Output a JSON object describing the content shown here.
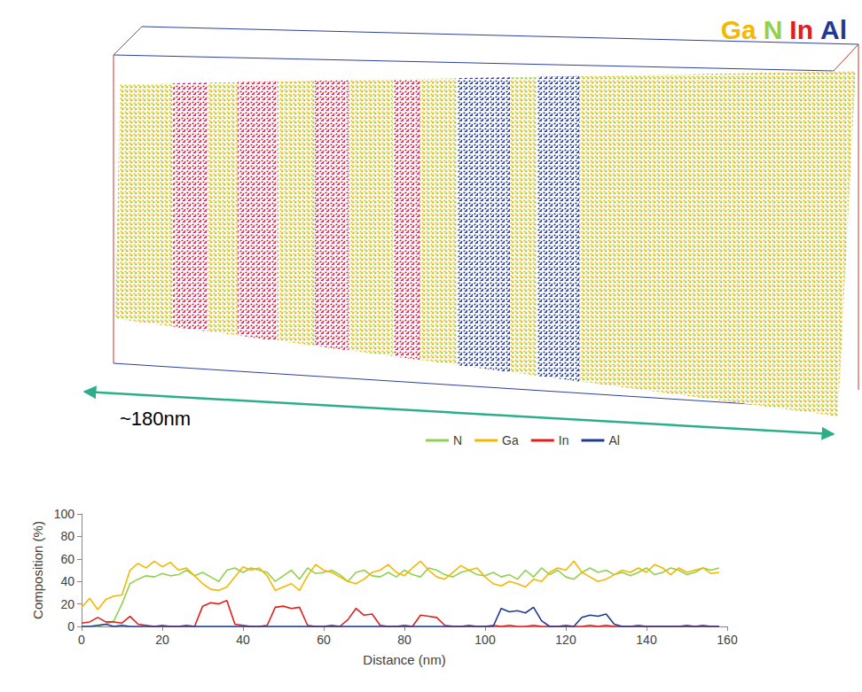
{
  "reconstruction": {
    "elements": [
      {
        "label": "Ga",
        "color": "#f5b800"
      },
      {
        "label": "N",
        "color": "#92d050"
      },
      {
        "label": "In",
        "color": "#e0201b"
      },
      {
        "label": "Al",
        "color": "#1f3a93"
      }
    ],
    "scale_label": "~180nm"
  },
  "chart_data": {
    "type": "line",
    "x_label": "Distance (nm)",
    "y_label": "Composition (%)",
    "xlim": [
      0,
      160
    ],
    "xticks": [
      0,
      20,
      40,
      60,
      80,
      100,
      120,
      140,
      160
    ],
    "ylim": [
      0,
      100
    ],
    "yticks": [
      0,
      20,
      40,
      60,
      80,
      100
    ],
    "grid": false,
    "legend": "top",
    "x": [
      0,
      2,
      4,
      6,
      8,
      10,
      12,
      14,
      16,
      18,
      20,
      22,
      24,
      26,
      28,
      30,
      32,
      34,
      36,
      38,
      40,
      42,
      44,
      46,
      48,
      50,
      52,
      54,
      56,
      58,
      60,
      62,
      64,
      66,
      68,
      70,
      72,
      74,
      76,
      78,
      80,
      82,
      84,
      86,
      88,
      90,
      92,
      94,
      96,
      98,
      100,
      102,
      104,
      106,
      108,
      110,
      112,
      114,
      116,
      118,
      120,
      122,
      124,
      126,
      128,
      130,
      132,
      134,
      136,
      138,
      140,
      142,
      144,
      146,
      148,
      150,
      152,
      154,
      156,
      158
    ],
    "series": [
      {
        "name": "N",
        "color": "#92d050",
        "values": [
          0,
          0,
          0,
          2,
          5,
          20,
          38,
          42,
          45,
          44,
          47,
          45,
          46,
          50,
          45,
          48,
          44,
          40,
          50,
          52,
          48,
          52,
          50,
          48,
          40,
          45,
          50,
          42,
          52,
          47,
          48,
          50,
          46,
          40,
          48,
          50,
          45,
          44,
          48,
          44,
          50,
          46,
          44,
          52,
          50,
          46,
          44,
          48,
          50,
          46,
          45,
          48,
          44,
          46,
          42,
          50,
          44,
          52,
          46,
          50,
          44,
          42,
          48,
          52,
          48,
          50,
          46,
          48,
          45,
          48,
          52,
          46,
          48,
          52,
          50,
          46,
          48,
          52,
          50,
          52
        ]
      },
      {
        "name": "Ga",
        "color": "#f5b800",
        "values": [
          17,
          25,
          15,
          24,
          27,
          28,
          50,
          56,
          52,
          58,
          53,
          57,
          50,
          52,
          45,
          38,
          33,
          32,
          35,
          44,
          53,
          50,
          52,
          45,
          32,
          35,
          38,
          32,
          45,
          55,
          50,
          48,
          44,
          40,
          38,
          42,
          48,
          50,
          55,
          48,
          45,
          52,
          58,
          50,
          44,
          42,
          48,
          54,
          50,
          52,
          44,
          38,
          36,
          40,
          38,
          35,
          42,
          40,
          48,
          52,
          50,
          58,
          48,
          44,
          40,
          42,
          46,
          50,
          48,
          52,
          48,
          55,
          52,
          46,
          52,
          48,
          50,
          52,
          47,
          48
        ]
      },
      {
        "name": "In",
        "color": "#e0201b",
        "values": [
          3,
          4,
          8,
          4,
          4,
          3,
          9,
          2,
          1,
          0,
          1,
          0,
          0,
          1,
          0,
          18,
          21,
          20,
          23,
          2,
          1,
          0,
          0,
          1,
          17,
          18,
          16,
          17,
          1,
          0,
          0,
          1,
          0,
          6,
          16,
          10,
          11,
          1,
          0,
          0,
          1,
          0,
          10,
          9,
          8,
          1,
          0,
          0,
          1,
          0,
          0,
          1,
          0,
          1,
          0,
          0,
          1,
          0,
          0,
          0,
          1,
          0,
          0,
          1,
          0,
          1,
          0,
          0,
          0,
          1,
          0,
          0,
          0,
          0,
          0,
          1,
          0,
          1,
          0,
          0
        ]
      },
      {
        "name": "Al",
        "color": "#1f3a93",
        "values": [
          0,
          0,
          1,
          2,
          0,
          1,
          0,
          0,
          0,
          0,
          0,
          0,
          0,
          0,
          0,
          0,
          0,
          0,
          0,
          0,
          0,
          0,
          0,
          0,
          0,
          0,
          0,
          0,
          0,
          0,
          0,
          0,
          0,
          0,
          0,
          0,
          0,
          0,
          0,
          0,
          0,
          0,
          0,
          0,
          0,
          0,
          0,
          0,
          0,
          0,
          0,
          0,
          16,
          13,
          14,
          12,
          17,
          5,
          0,
          0,
          0,
          0,
          8,
          10,
          9,
          11,
          2,
          0,
          0,
          0,
          0,
          0,
          0,
          0,
          0,
          0,
          0,
          0,
          0,
          0
        ]
      }
    ]
  }
}
